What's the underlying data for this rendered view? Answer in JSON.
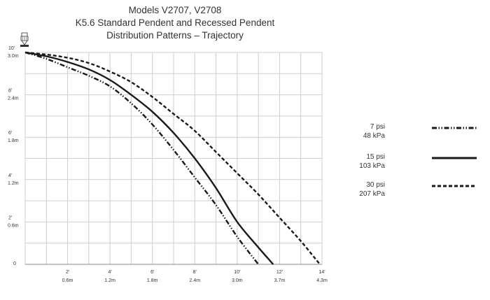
{
  "chart_data": {
    "type": "line",
    "title": "Models V2707, V2708",
    "subtitle_lines": [
      "K5.6 Standard Pendent and Recessed Pendent",
      "Distribution Patterns – Trajectory"
    ],
    "xlabel": "",
    "ylabel": "",
    "xlim": [
      0,
      14
    ],
    "ylim": [
      0,
      10
    ],
    "grid": true,
    "x_ticks": [
      {
        "value": 2,
        "ft": "2'",
        "m": "0.6m"
      },
      {
        "value": 4,
        "ft": "4'",
        "m": "1.2m"
      },
      {
        "value": 6,
        "ft": "6'",
        "m": "1.8m"
      },
      {
        "value": 8,
        "ft": "8'",
        "m": "2.4m"
      },
      {
        "value": 10,
        "ft": "10'",
        "m": "3.0m"
      },
      {
        "value": 12,
        "ft": "12'",
        "m": "3.7m"
      },
      {
        "value": 14,
        "ft": "14'",
        "m": "4.3m"
      }
    ],
    "y_ticks": [
      {
        "value": 10,
        "ft": "10'",
        "m": "3.0m"
      },
      {
        "value": 8,
        "ft": "8'",
        "m": "2.4m"
      },
      {
        "value": 6,
        "ft": "6'",
        "m": "1.8m"
      },
      {
        "value": 4,
        "ft": "4'",
        "m": "1.2m"
      },
      {
        "value": 2,
        "ft": "2'",
        "m": "0.6m"
      },
      {
        "value": 0,
        "ft": "0",
        "m": ""
      }
    ],
    "legend_position": "right",
    "series": [
      {
        "label_psi": "7 psi",
        "label_kpa": "48 kPa",
        "style": "dash-dot-dot",
        "x": [
          0,
          1,
          2,
          3,
          4,
          5,
          6,
          7,
          8,
          9,
          10,
          11.0
        ],
        "y": [
          10,
          9.7,
          9.3,
          8.9,
          8.4,
          7.6,
          6.6,
          5.4,
          4.1,
          2.8,
          1.3,
          0
        ]
      },
      {
        "label_psi": "15 psi",
        "label_kpa": "103 kPa",
        "style": "solid",
        "x": [
          0,
          1,
          2,
          3,
          4,
          5,
          6,
          7,
          8,
          9,
          10,
          11.0,
          11.7
        ],
        "y": [
          10,
          9.82,
          9.55,
          9.2,
          8.7,
          8.0,
          7.2,
          6.2,
          5.0,
          3.6,
          2.0,
          0.8,
          0
        ]
      },
      {
        "label_psi": "30 psi",
        "label_kpa": "207 kPa",
        "style": "dashed",
        "x": [
          0,
          1,
          2,
          3,
          4,
          5,
          6,
          7,
          8,
          9,
          10,
          11,
          12,
          13,
          13.9
        ],
        "y": [
          10,
          9.9,
          9.75,
          9.5,
          9.1,
          8.6,
          7.9,
          7.1,
          6.3,
          5.3,
          4.3,
          3.3,
          2.2,
          1.1,
          0
        ]
      }
    ],
    "colors": {
      "line": "#1a1a1a",
      "grid": "#cfcfcf",
      "text": "#333333"
    }
  }
}
